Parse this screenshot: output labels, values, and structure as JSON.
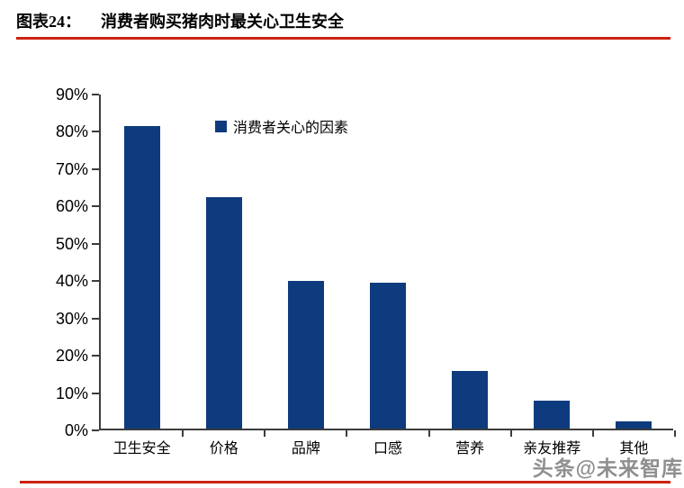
{
  "page": {
    "title_prefix": "图表24：",
    "title": "消费者购买猪肉时最关心卫生安全",
    "watermark": "头条@未来智库",
    "colors": {
      "accent_red": "#cc2211",
      "bar_navy": "#0e3b7d",
      "axis": "#3c3c3c",
      "watermark_gray": "#8f8f8f"
    }
  },
  "chart_data": {
    "type": "bar",
    "title": "消费者购买猪肉时最关心卫生安全",
    "legend": [
      "消费者关心的因素"
    ],
    "legend_position": "top-center",
    "categories": [
      "卫生安全",
      "价格",
      "品牌",
      "口感",
      "营养",
      "亲友推荐",
      "其他"
    ],
    "values": [
      81,
      62,
      39.5,
      39,
      15.5,
      7.5,
      2
    ],
    "unit": "%",
    "xlabel": "",
    "ylabel": "",
    "ylim": [
      0,
      90
    ],
    "y_tick_step": 10,
    "y_tick_labels": [
      "0%",
      "10%",
      "20%",
      "30%",
      "40%",
      "50%",
      "60%",
      "70%",
      "80%",
      "90%"
    ],
    "grid": false,
    "bar_color": "#0e3b7d"
  }
}
